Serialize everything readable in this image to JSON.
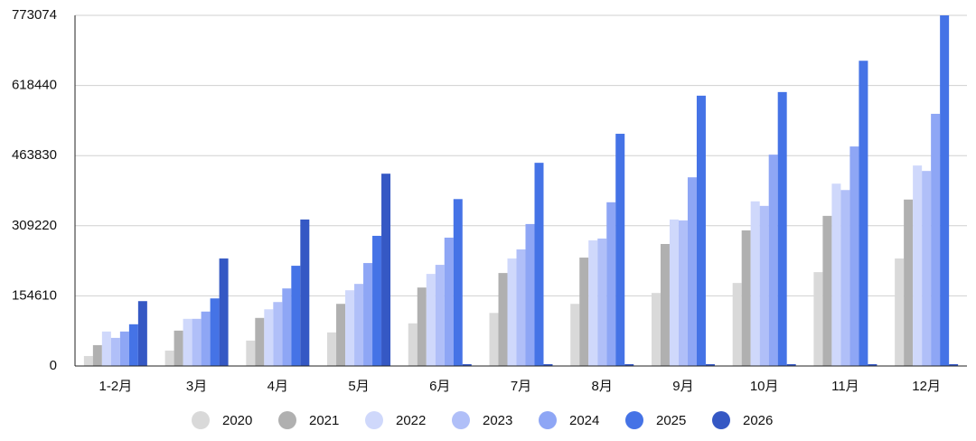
{
  "chart_data": {
    "type": "bar",
    "categories": [
      "1-2月",
      "3月",
      "4月",
      "5月",
      "6月",
      "7月",
      "8月",
      "9月",
      "10月",
      "11月",
      "12月"
    ],
    "series": [
      {
        "name": "2020",
        "color": "#d9d9d9",
        "values": [
          22000,
          34000,
          56000,
          74000,
          94000,
          117000,
          137000,
          161000,
          183000,
          207000,
          237000
        ]
      },
      {
        "name": "2021",
        "color": "#b0b0b0",
        "values": [
          46000,
          78000,
          106000,
          137000,
          173000,
          205000,
          239000,
          269000,
          299000,
          331000,
          367000
        ]
      },
      {
        "name": "2022",
        "color": "#cfd8fb",
        "values": [
          76000,
          104000,
          125000,
          167000,
          203000,
          237000,
          277000,
          323000,
          363000,
          402000,
          442000
        ]
      },
      {
        "name": "2023",
        "color": "#b0bff8",
        "values": [
          62000,
          104000,
          141000,
          181000,
          223000,
          257000,
          281000,
          321000,
          353000,
          388000,
          430000
        ]
      },
      {
        "name": "2024",
        "color": "#8ea6f5",
        "values": [
          76000,
          120000,
          171000,
          227000,
          283000,
          313000,
          361000,
          416000,
          466000,
          484000,
          556000
        ]
      },
      {
        "name": "2025",
        "color": "#4573e6",
        "values": [
          92000,
          149000,
          221000,
          287000,
          368000,
          448000,
          512000,
          596000,
          604000,
          673000,
          773074
        ]
      },
      {
        "name": "2026",
        "color": "#3558c4",
        "values": [
          143000,
          237000,
          323000,
          424000,
          0,
          0,
          0,
          0,
          0,
          0,
          0
        ]
      }
    ],
    "ylim": [
      0,
      773074
    ],
    "yticks": [
      0,
      154610,
      309220,
      463830,
      618440,
      773074
    ],
    "grid": true,
    "legend": "bottom"
  }
}
